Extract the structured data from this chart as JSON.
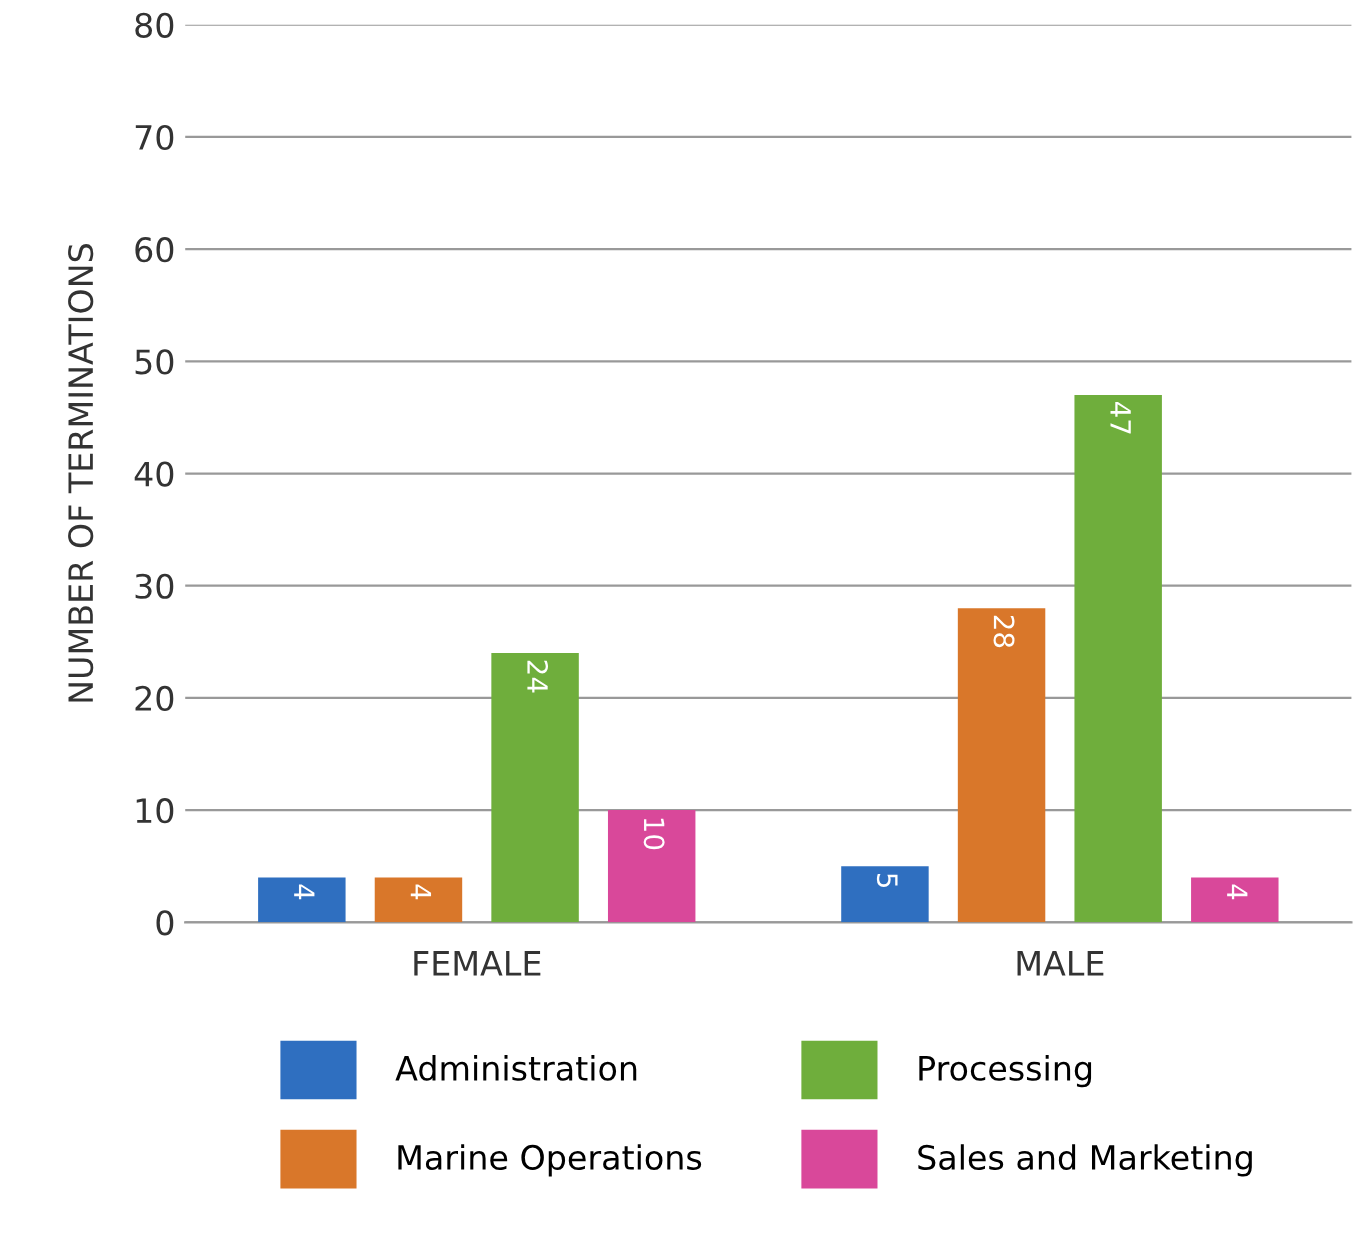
{
  "chart_data": {
    "type": "bar",
    "ylabel": "NUMBER OF TERMINATIONS",
    "categories": [
      "FEMALE",
      "MALE"
    ],
    "series": [
      {
        "name": "Administration",
        "color": "#2f6fc0",
        "values": [
          4,
          5
        ]
      },
      {
        "name": "Marine Operations",
        "color": "#d9772a",
        "values": [
          4,
          28
        ]
      },
      {
        "name": "Processing",
        "color": "#6fae3c",
        "values": [
          24,
          47
        ]
      },
      {
        "name": "Sales and Marketing",
        "color": "#d9489a",
        "values": [
          10,
          4
        ]
      }
    ],
    "ylim": [
      0,
      80
    ],
    "yticks": [
      0,
      10,
      20,
      30,
      40,
      50,
      60,
      70,
      80
    ],
    "grid": "y",
    "legend": "bottom",
    "data_labels": true
  }
}
